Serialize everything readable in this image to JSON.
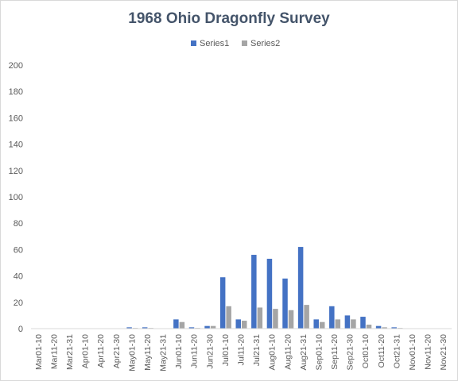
{
  "chart_data": {
    "type": "bar",
    "title": "1968 Ohio Dragonfly Survey",
    "xlabel": "",
    "ylabel": "",
    "ylim": [
      0,
      200
    ],
    "yticks": [
      0,
      20,
      40,
      60,
      80,
      100,
      120,
      140,
      160,
      180,
      200
    ],
    "grid": false,
    "legend_position": "top",
    "categories": [
      "Mar01-10",
      "Mar11-20",
      "Mar21-31",
      "Apr01-10",
      "Apr11-20",
      "Apr21-30",
      "May01-10",
      "May11-20",
      "May21-31",
      "Jun01-10",
      "Jun11-20",
      "Jun21-30",
      "Jul01-10",
      "Jul11-20",
      "Jul21-31",
      "Aug01-10",
      "Aug11-20",
      "Aug21-31",
      "Sep01-10",
      "Sep11-20",
      "Sep21-30",
      "Oct01-10",
      "Oct11-20",
      "Oct21-31",
      "Nov01-10",
      "Nov11-20",
      "Nov21-30"
    ],
    "series": [
      {
        "name": "Series1",
        "color": "#4472c4",
        "values": [
          0,
          0,
          0,
          0,
          0,
          0,
          1,
          1,
          0,
          7,
          1,
          2,
          39,
          7,
          56,
          53,
          38,
          62,
          7,
          17,
          10,
          9,
          2,
          1,
          0,
          0,
          0
        ]
      },
      {
        "name": "Series2",
        "color": "#a5a5a5",
        "values": [
          0,
          0,
          0,
          0,
          0,
          0,
          0.5,
          0.5,
          0,
          5,
          0.5,
          2,
          17,
          6,
          16,
          15,
          14,
          18,
          5,
          7,
          7,
          3,
          1,
          0.5,
          0,
          0,
          0
        ]
      }
    ]
  }
}
